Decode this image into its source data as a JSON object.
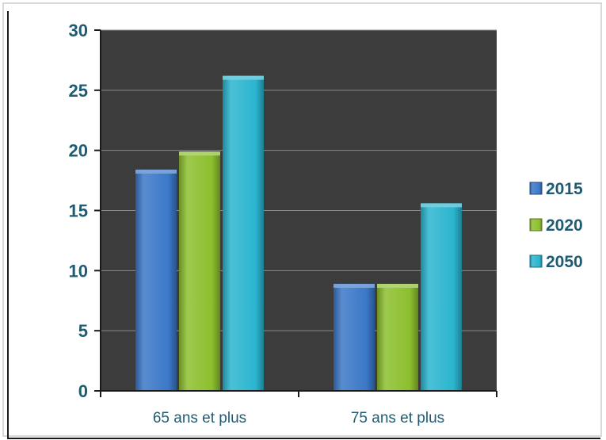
{
  "chart_data": {
    "type": "bar",
    "categories": [
      "65 ans et plus",
      "75 ans et plus"
    ],
    "series": [
      {
        "name": "2015",
        "values": [
          18.4,
          8.9
        ],
        "color": "#3b78c8"
      },
      {
        "name": "2020",
        "values": [
          19.9,
          8.9
        ],
        "color": "#8cbf2e"
      },
      {
        "name": "2050",
        "values": [
          26.2,
          15.6
        ],
        "color": "#2bb5cf"
      }
    ],
    "ylim": [
      0,
      30
    ],
    "yticks": [
      0,
      5,
      10,
      15,
      20,
      25,
      30
    ],
    "grid": true,
    "legend_position": "right",
    "plot_background": "#3c3c3c",
    "gridline_color": "#8a8a8a"
  }
}
